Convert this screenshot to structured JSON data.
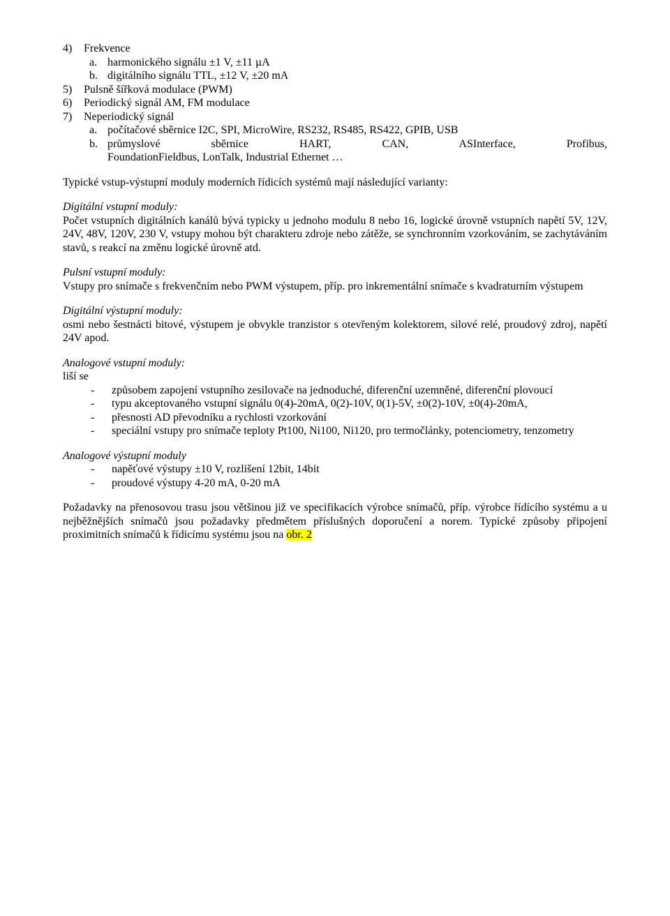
{
  "list1": {
    "item4_num": "4)",
    "item4_text": "Frekvence",
    "item4a_lbl": "a.",
    "item4a_text": "harmonického signálu ±1 V, ±11 µA",
    "item4b_lbl": "b.",
    "item4b_text": "digitálního signálu TTL, ±12 V, ±20 mA",
    "item5_num": "5)",
    "item5_text": "Pulsně šířková modulace (PWM)",
    "item6_num": "6)",
    "item6_text": "Periodický signál AM, FM modulace",
    "item7_num": "7)",
    "item7_text": "Neperiodický signál",
    "item7a_lbl": "a.",
    "item7a_text": "počítačové sběrnice I2C, SPI, MicroWire, RS232, RS485, RS422, GPIB, USB",
    "item7b_lbl": "b.",
    "item7b_line1": "průmyslové sběrnice HART, CAN, ASInterface, Profibus,",
    "item7b_line2": "FoundationFieldbus, LonTalk, Industrial Ethernet …"
  },
  "para1": "Typické vstup-výstupní moduly moderních řídicích systémů mají následující varianty:",
  "sec1": {
    "title": "Digitální vstupní moduly:",
    "body": "Počet vstupních digitálních kanálů bývá typicky u jednoho modulu 8 nebo 16, logické úrovně vstupních napětí 5V, 12V, 24V, 48V, 120V, 230 V, vstupy mohou být charakteru zdroje nebo zátěže, se synchronním vzorkováním, se zachytáváním stavů, s reakcí na změnu logické úrovně atd."
  },
  "sec2": {
    "title": "Pulsní vstupní moduly:",
    "body": "Vstupy pro snímače s frekvenčním nebo PWM výstupem, příp. pro inkrementální snímače s kvadraturním výstupem"
  },
  "sec3": {
    "title": "Digitální výstupní moduly:",
    "body": "osmi nebo šestnácti bitové, výstupem je obvykle tranzistor s otevřeným kolektorem, silové relé, proudový zdroj, napětí 24V apod."
  },
  "sec4": {
    "title": "Analogové vstupní moduly:",
    "lead": "liší se",
    "d1": "způsobem zapojení vstupního zesilovače na jednoduché, diferenční uzemněné, diferenční plovoucí",
    "d2": "typu akceptovaného vstupní signálu 0(4)-20mA, 0(2)-10V, 0(1)-5V, ±0(2)-10V, ±0(4)-20mA,",
    "d3": "přesnosti AD převodníku a rychlosti vzorkování",
    "d4": "speciální vstupy pro snímače teploty Pt100, Ni100, Ni120, pro termočlánky, potenciometry, tenzometry"
  },
  "sec5": {
    "title": "Analogové výstupní moduly",
    "d1": "napěťové výstupy ±10 V, rozlišení 12bit, 14bit",
    "d2": "proudové výstupy 4-20 mA, 0-20 mA"
  },
  "para2_a": "Požadavky na přenosovou trasu jsou většinou již ve specifikacích výrobce snímačů, příp. výrobce řídícího systému a u nejběžnějších snímačů jsou požadavky předmětem příslušných doporučení a norem. Typické způsoby připojení proximitních snímačů k řídicímu systému jsou na ",
  "para2_hl": "obr. 2",
  "dash": "-"
}
